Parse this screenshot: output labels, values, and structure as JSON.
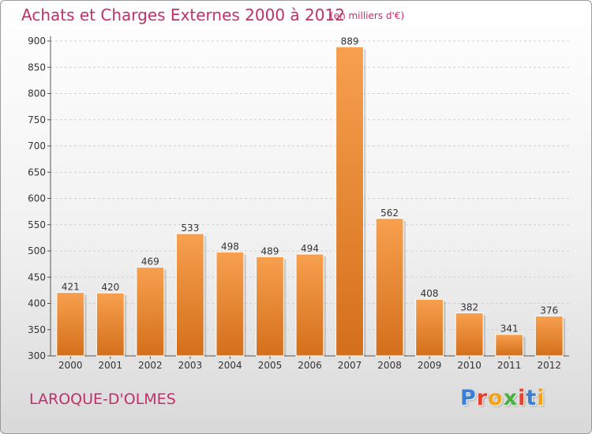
{
  "header": {
    "title": "Achats et Charges Externes 2000 à 2012",
    "unit": "(en milliers d'€)"
  },
  "footer": {
    "commune": "LAROQUE-D'OLMES",
    "logo": "Proxiti",
    "logo_colors": [
      "#3a7fd5",
      "#e8412c",
      "#f3a21c",
      "#4ab03f",
      "#e8412c",
      "#3a7fd5",
      "#f3a21c"
    ]
  },
  "chart_data": {
    "type": "bar",
    "title": "Achats et Charges Externes 2000 à 2012",
    "xlabel": "",
    "ylabel": "",
    "categories": [
      "2000",
      "2001",
      "2002",
      "2003",
      "2004",
      "2005",
      "2006",
      "2007",
      "2008",
      "2009",
      "2010",
      "2011",
      "2012"
    ],
    "values": [
      421,
      420,
      469,
      533,
      498,
      489,
      494,
      889,
      562,
      408,
      382,
      341,
      376
    ],
    "ylim": [
      300,
      900
    ],
    "yticks": [
      300,
      350,
      400,
      450,
      500,
      550,
      600,
      650,
      700,
      750,
      800,
      850,
      900
    ],
    "grid": true,
    "bar_color": "#e8822c"
  }
}
